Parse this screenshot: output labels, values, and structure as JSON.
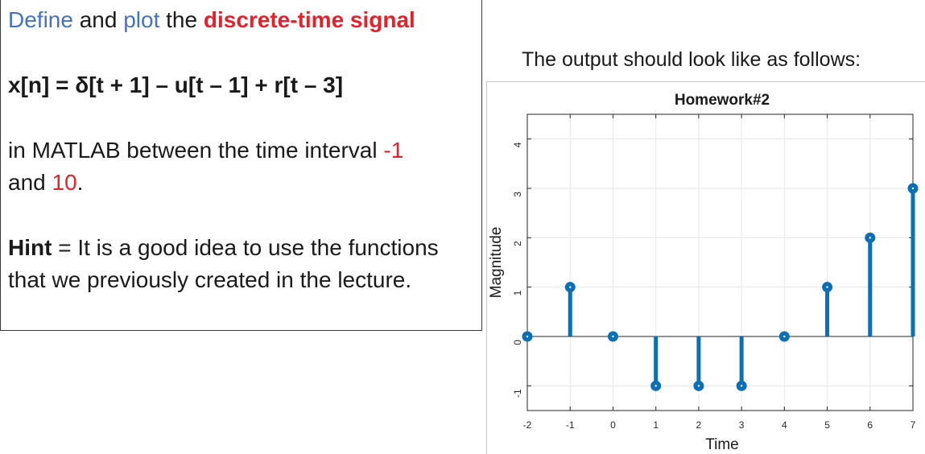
{
  "instructions": {
    "line1": {
      "define": "Define",
      "and": " and ",
      "plot": "plot",
      "the": " the ",
      "signal": "discrete-time signal"
    },
    "formula": "x[n] = δ[t + 1] – u[t – 1] + r[t – 3]",
    "interval": {
      "prefix": "in MATLAB between the time interval ",
      "start": "-1",
      "and": "and ",
      "end": "10",
      "suffix": "."
    },
    "hint": {
      "label": "Hint",
      "text": " = It is a good idea to use the functions that we previously created in the lecture."
    }
  },
  "caption": "The output should look like as follows:",
  "colors": {
    "stem": "#0a6fb5",
    "grid": "#e6e6e6",
    "axis": "#262626",
    "blue_text": "#4472c4",
    "red_text": "#e8202a"
  },
  "chart_data": {
    "type": "scatter",
    "style": "stem",
    "title": "Homework#2",
    "xlabel": "Time",
    "ylabel": "Magnitude",
    "xlim": [
      -2,
      7
    ],
    "ylim": [
      -1.5,
      4.5
    ],
    "xticks": [
      -2,
      -1,
      0,
      1,
      2,
      3,
      4,
      5,
      6,
      7
    ],
    "yticks": [
      -1,
      0,
      1,
      2,
      3,
      4
    ],
    "grid": true,
    "x": [
      -2,
      -1,
      0,
      1,
      2,
      3,
      4,
      5,
      6,
      7
    ],
    "y": [
      0,
      1,
      0,
      -1,
      -1,
      -1,
      0,
      1,
      2,
      3
    ]
  }
}
